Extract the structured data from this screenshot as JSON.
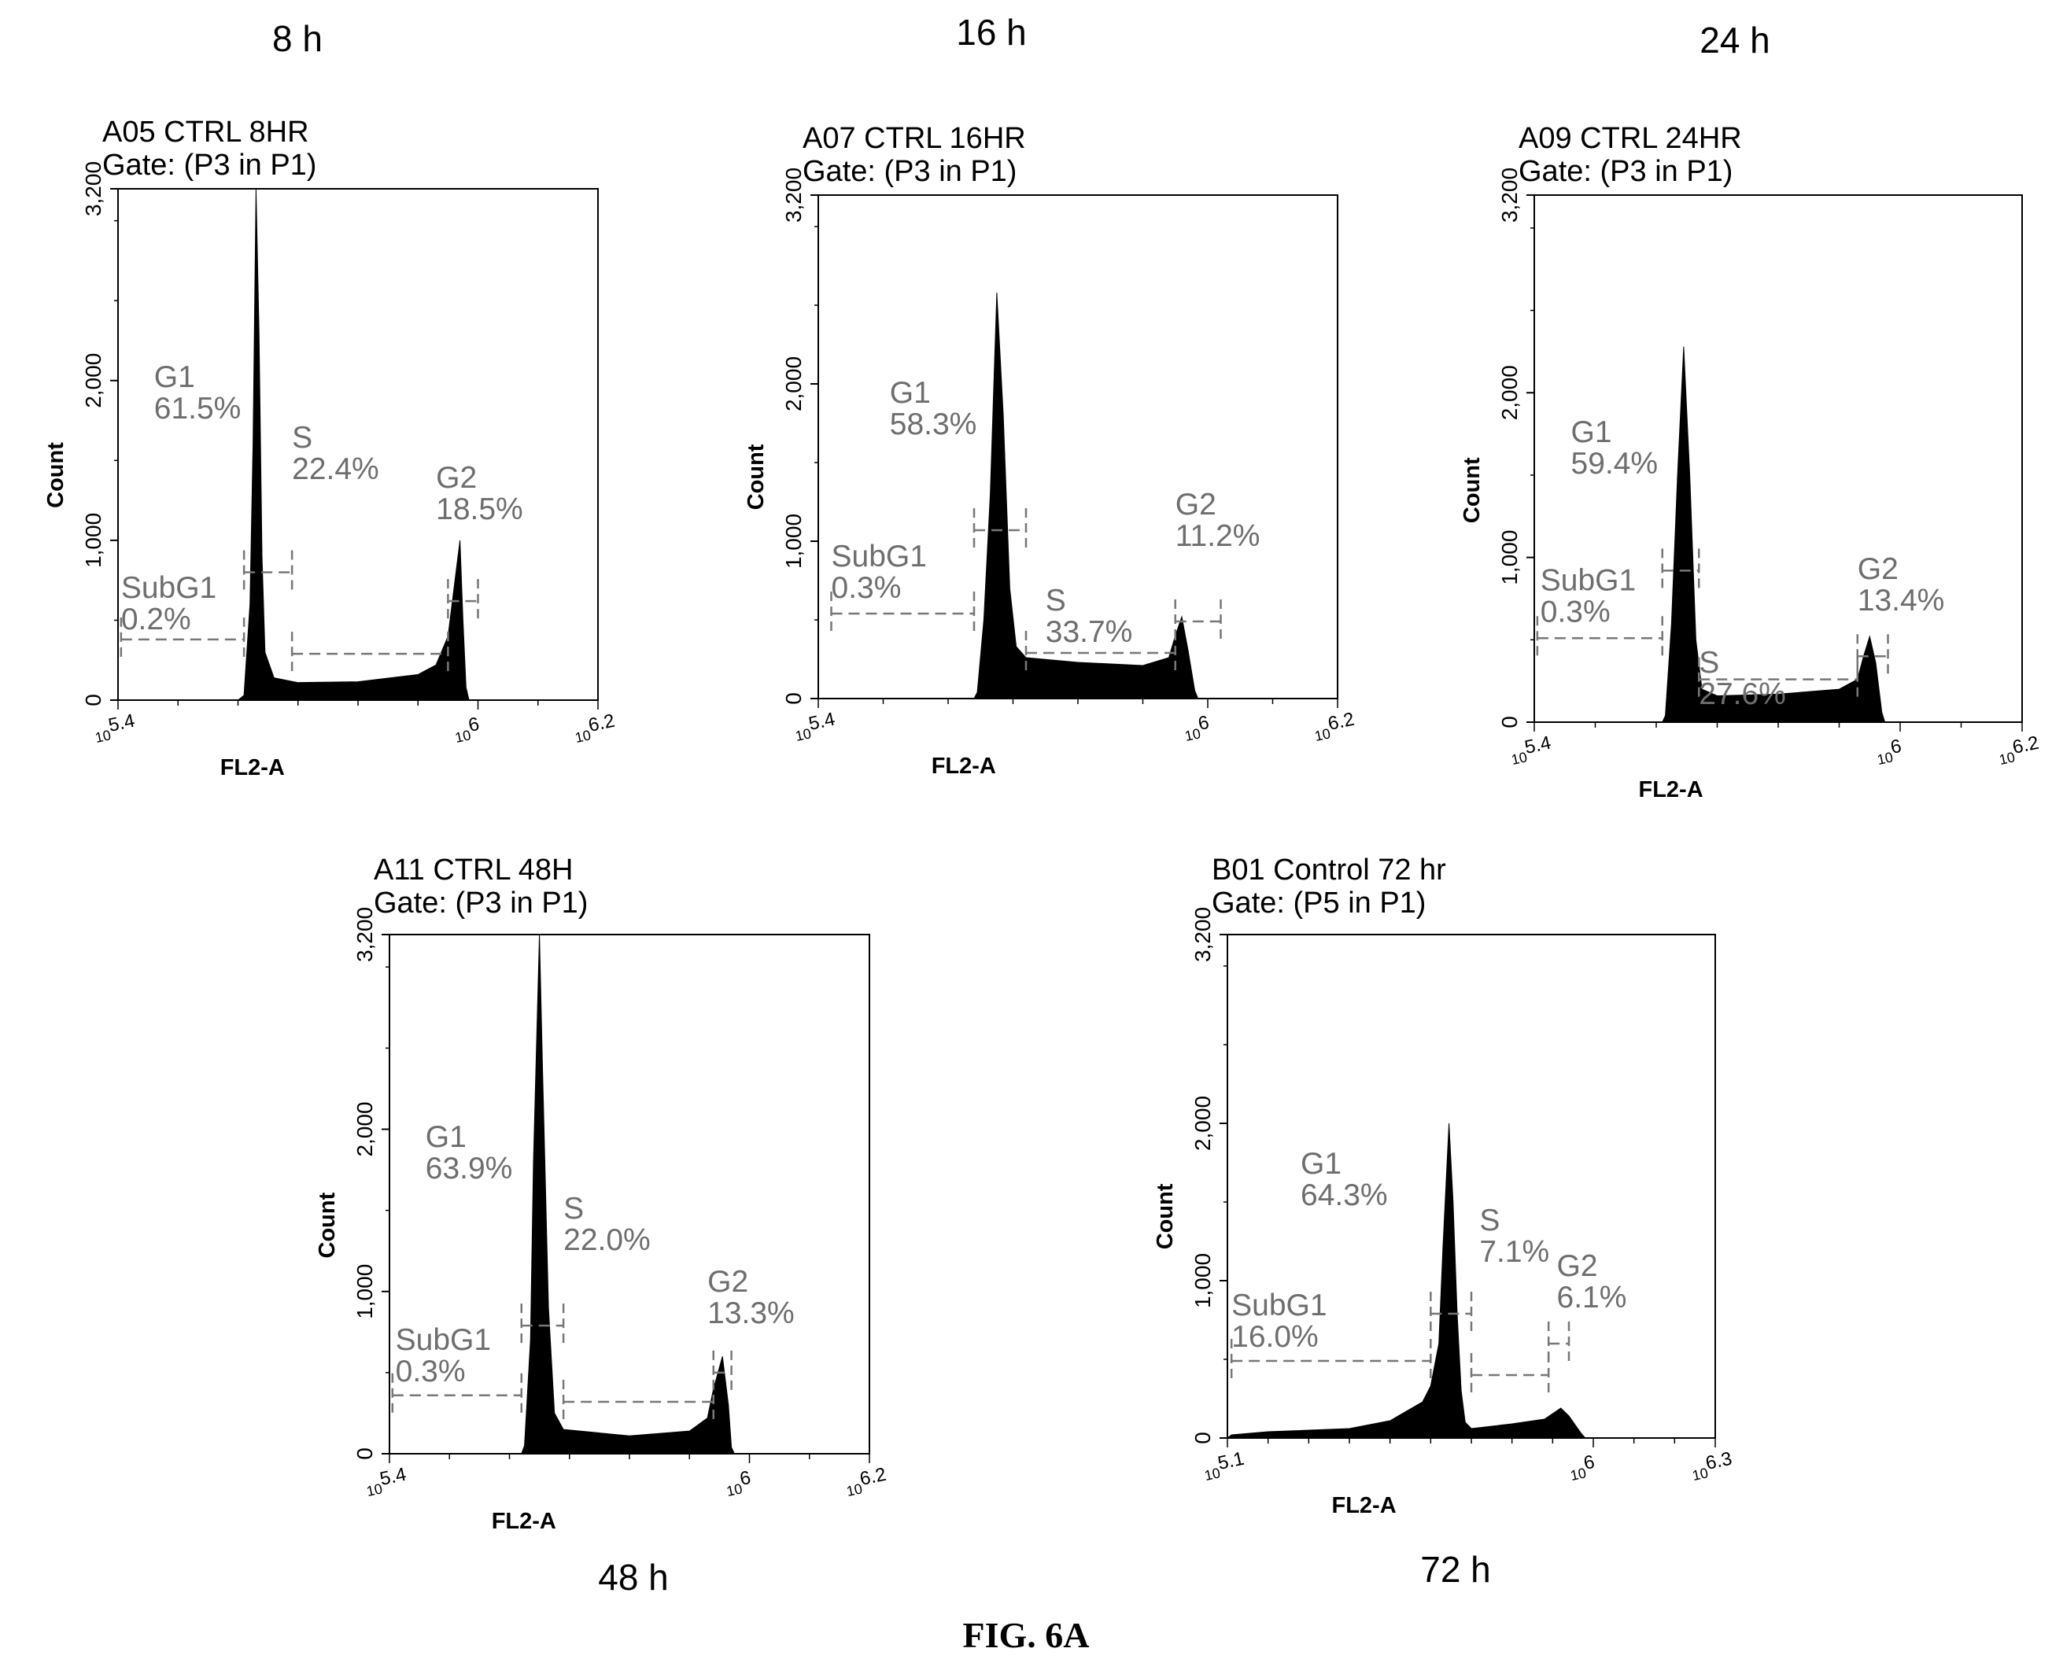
{
  "figure_caption": "FIG. 6A",
  "chart_data": [
    {
      "type": "histogram",
      "time_label": "8 h",
      "title": "A05 CTRL 8HR",
      "subtitle": "Gate: (P3 in P1)",
      "xlabel": "FL2-A",
      "ylabel": "Count",
      "x_scale": "log10",
      "xlim_exp": [
        5.4,
        6.2
      ],
      "x_tick_labels": [
        "10",
        "5.4",
        "10",
        "6",
        "10",
        "6.2"
      ],
      "ylim": [
        0,
        3200
      ],
      "y_ticks": [
        0,
        1000,
        2000,
        3200
      ],
      "y_tick_labels": [
        "0",
        "1,000",
        "2,000",
        "3,200"
      ],
      "profile": [
        [
          5.4,
          0
        ],
        [
          5.6,
          0
        ],
        [
          5.61,
          30
        ],
        [
          5.62,
          600
        ],
        [
          5.625,
          1600
        ],
        [
          5.63,
          3200
        ],
        [
          5.635,
          2300
        ],
        [
          5.64,
          900
        ],
        [
          5.645,
          300
        ],
        [
          5.66,
          140
        ],
        [
          5.7,
          110
        ],
        [
          5.8,
          115
        ],
        [
          5.9,
          160
        ],
        [
          5.93,
          220
        ],
        [
          5.95,
          400
        ],
        [
          5.96,
          700
        ],
        [
          5.97,
          1000
        ],
        [
          5.975,
          500
        ],
        [
          5.98,
          80
        ],
        [
          5.985,
          0
        ],
        [
          6.2,
          0
        ]
      ],
      "gates": [
        {
          "name": "SubG1",
          "value": "0.2%",
          "x_range": [
            5.405,
            5.61
          ],
          "y_level": 380,
          "label_x": 5.405,
          "label_y": 640
        },
        {
          "name": "G1",
          "value": "61.5%",
          "x_range": [
            5.61,
            5.69
          ],
          "y_level": 800,
          "label_x": 5.46,
          "label_y": 1960
        },
        {
          "name": "S",
          "value": "22.4%",
          "x_range": [
            5.69,
            5.95
          ],
          "y_level": 290,
          "label_x": 5.69,
          "label_y": 1580
        },
        {
          "name": "G2",
          "value": "18.5%",
          "x_range": [
            5.95,
            6.0
          ],
          "y_level": 620,
          "label_x": 5.93,
          "label_y": 1330
        }
      ]
    },
    {
      "type": "histogram",
      "time_label": "16 h",
      "title": "A07 CTRL 16HR",
      "subtitle": "Gate: (P3 in P1)",
      "xlabel": "FL2-A",
      "ylabel": "Count",
      "x_scale": "log10",
      "xlim_exp": [
        5.4,
        6.2
      ],
      "x_tick_labels": [
        "10",
        "5.4",
        "10",
        "6",
        "10",
        "6.2"
      ],
      "ylim": [
        0,
        3200
      ],
      "y_ticks": [
        0,
        1000,
        2000,
        3200
      ],
      "y_tick_labels": [
        "0",
        "1,000",
        "2,000",
        "3,200"
      ],
      "profile": [
        [
          5.4,
          0
        ],
        [
          5.64,
          0
        ],
        [
          5.645,
          40
        ],
        [
          5.655,
          500
        ],
        [
          5.665,
          1300
        ],
        [
          5.675,
          2580
        ],
        [
          5.685,
          1800
        ],
        [
          5.695,
          700
        ],
        [
          5.705,
          330
        ],
        [
          5.72,
          260
        ],
        [
          5.8,
          230
        ],
        [
          5.9,
          210
        ],
        [
          5.94,
          260
        ],
        [
          5.95,
          400
        ],
        [
          5.96,
          520
        ],
        [
          5.97,
          300
        ],
        [
          5.98,
          50
        ],
        [
          5.985,
          0
        ],
        [
          6.2,
          0
        ]
      ],
      "gates": [
        {
          "name": "SubG1",
          "value": "0.3%",
          "x_range": [
            5.42,
            5.64
          ],
          "y_level": 540,
          "label_x": 5.42,
          "label_y": 840
        },
        {
          "name": "G1",
          "value": "58.3%",
          "x_range": [
            5.64,
            5.72
          ],
          "y_level": 1070,
          "label_x": 5.51,
          "label_y": 1880
        },
        {
          "name": "S",
          "value": "33.7%",
          "x_range": [
            5.72,
            5.95
          ],
          "y_level": 290,
          "label_x": 5.75,
          "label_y": 560
        },
        {
          "name": "G2",
          "value": "11.2%",
          "x_range": [
            5.95,
            6.02
          ],
          "y_level": 490,
          "label_x": 5.95,
          "label_y": 1170
        }
      ]
    },
    {
      "type": "histogram",
      "time_label": "24 h",
      "title": "A09 CTRL 24HR",
      "subtitle": "Gate: (P3 in P1)",
      "xlabel": "FL2-A",
      "ylabel": "Count",
      "x_scale": "log10",
      "xlim_exp": [
        5.4,
        6.2
      ],
      "x_tick_labels": [
        "10",
        "5.4",
        "10",
        "6",
        "10",
        "6.2"
      ],
      "ylim": [
        0,
        3200
      ],
      "y_ticks": [
        0,
        1000,
        2000,
        3200
      ],
      "y_tick_labels": [
        "0",
        "1,000",
        "2,000",
        "3,200"
      ],
      "profile": [
        [
          5.4,
          0
        ],
        [
          5.61,
          0
        ],
        [
          5.615,
          40
        ],
        [
          5.625,
          600
        ],
        [
          5.635,
          1500
        ],
        [
          5.645,
          2280
        ],
        [
          5.655,
          1500
        ],
        [
          5.665,
          500
        ],
        [
          5.675,
          200
        ],
        [
          5.7,
          160
        ],
        [
          5.8,
          170
        ],
        [
          5.9,
          200
        ],
        [
          5.93,
          260
        ],
        [
          5.94,
          400
        ],
        [
          5.95,
          520
        ],
        [
          5.96,
          360
        ],
        [
          5.97,
          60
        ],
        [
          5.975,
          0
        ],
        [
          6.2,
          0
        ]
      ],
      "gates": [
        {
          "name": "SubG1",
          "value": "0.3%",
          "x_range": [
            5.405,
            5.61
          ],
          "y_level": 510,
          "label_x": 5.41,
          "label_y": 800
        },
        {
          "name": "G1",
          "value": "59.4%",
          "x_range": [
            5.61,
            5.67
          ],
          "y_level": 920,
          "label_x": 5.46,
          "label_y": 1700
        },
        {
          "name": "S",
          "value": "27.6%",
          "x_range": [
            5.67,
            5.93
          ],
          "y_level": 260,
          "label_x": 5.67,
          "label_y": 300
        },
        {
          "name": "G2",
          "value": "13.4%",
          "x_range": [
            5.93,
            5.98
          ],
          "y_level": 400,
          "label_x": 5.93,
          "label_y": 870
        }
      ]
    },
    {
      "type": "histogram",
      "time_label": "48 h",
      "title": "A11 CTRL 48H",
      "subtitle": "Gate: (P3 in P1)",
      "xlabel": "FL2-A",
      "ylabel": "Count",
      "x_scale": "log10",
      "xlim_exp": [
        5.4,
        6.2
      ],
      "x_tick_labels": [
        "10",
        "5.4",
        "10",
        "6",
        "10",
        "6.2"
      ],
      "ylim": [
        0,
        3200
      ],
      "y_ticks": [
        0,
        1000,
        2000,
        3200
      ],
      "y_tick_labels": [
        "0",
        "1,000",
        "2,000",
        "3,200"
      ],
      "profile": [
        [
          5.4,
          0
        ],
        [
          5.62,
          0
        ],
        [
          5.625,
          50
        ],
        [
          5.635,
          700
        ],
        [
          5.64,
          1800
        ],
        [
          5.65,
          3200
        ],
        [
          5.655,
          2400
        ],
        [
          5.665,
          900
        ],
        [
          5.675,
          250
        ],
        [
          5.69,
          150
        ],
        [
          5.8,
          110
        ],
        [
          5.9,
          140
        ],
        [
          5.93,
          220
        ],
        [
          5.94,
          400
        ],
        [
          5.955,
          600
        ],
        [
          5.965,
          300
        ],
        [
          5.97,
          40
        ],
        [
          5.975,
          0
        ],
        [
          6.2,
          0
        ]
      ],
      "gates": [
        {
          "name": "SubG1",
          "value": "0.3%",
          "x_range": [
            5.405,
            5.62
          ],
          "y_level": 360,
          "label_x": 5.41,
          "label_y": 640
        },
        {
          "name": "G1",
          "value": "63.9%",
          "x_range": [
            5.62,
            5.69
          ],
          "y_level": 790,
          "label_x": 5.46,
          "label_y": 1890
        },
        {
          "name": "S",
          "value": "22.0%",
          "x_range": [
            5.69,
            5.94
          ],
          "y_level": 320,
          "label_x": 5.69,
          "label_y": 1450
        },
        {
          "name": "G2",
          "value": "13.3%",
          "x_range": [
            5.94,
            5.97
          ],
          "y_level": 500,
          "label_x": 5.93,
          "label_y": 1000
        }
      ]
    },
    {
      "type": "histogram",
      "time_label": "72 h",
      "title": "B01 Control 72 hr",
      "subtitle": "Gate: (P5 in P1)",
      "xlabel": "FL2-A",
      "ylabel": "Count",
      "x_scale": "log10",
      "xlim_exp": [
        5.1,
        6.3
      ],
      "x_tick_labels": [
        "10",
        "5.1",
        "10",
        "6",
        "10",
        "6.3"
      ],
      "ylim": [
        0,
        3200
      ],
      "y_ticks": [
        0,
        1000,
        2000,
        3200
      ],
      "y_tick_labels": [
        "0",
        "1,000",
        "2,000",
        "3,200"
      ],
      "profile": [
        [
          5.1,
          0
        ],
        [
          5.11,
          20
        ],
        [
          5.2,
          40
        ],
        [
          5.4,
          60
        ],
        [
          5.5,
          110
        ],
        [
          5.58,
          230
        ],
        [
          5.6,
          330
        ],
        [
          5.62,
          600
        ],
        [
          5.63,
          1200
        ],
        [
          5.645,
          2000
        ],
        [
          5.655,
          1500
        ],
        [
          5.665,
          800
        ],
        [
          5.675,
          300
        ],
        [
          5.685,
          100
        ],
        [
          5.7,
          60
        ],
        [
          5.8,
          90
        ],
        [
          5.88,
          120
        ],
        [
          5.92,
          190
        ],
        [
          5.94,
          140
        ],
        [
          5.97,
          30
        ],
        [
          5.98,
          0
        ],
        [
          6.3,
          0
        ]
      ],
      "gates": [
        {
          "name": "SubG1",
          "value": "16.0%",
          "x_range": [
            5.11,
            5.6
          ],
          "y_level": 490,
          "label_x": 5.11,
          "label_y": 780
        },
        {
          "name": "G1",
          "value": "64.3%",
          "x_range": [
            5.6,
            5.7
          ],
          "y_level": 790,
          "label_x": 5.28,
          "label_y": 1680
        },
        {
          "name": "S",
          "value": "7.1%",
          "x_range": [
            5.7,
            5.89
          ],
          "y_level": 400,
          "label_x": 5.72,
          "label_y": 1320
        },
        {
          "name": "G2",
          "value": "6.1%",
          "x_range": [
            5.89,
            5.94
          ],
          "y_level": 600,
          "label_x": 5.91,
          "label_y": 1030
        }
      ]
    }
  ]
}
